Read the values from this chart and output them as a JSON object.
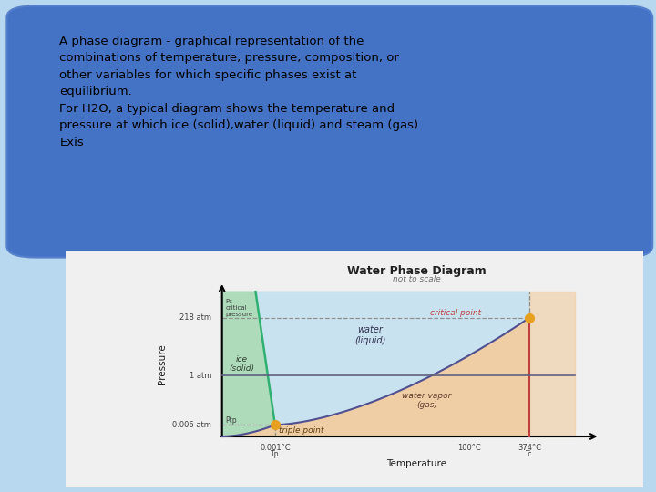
{
  "bg_color": "#b8d8f0",
  "box_color": "#4472c4",
  "box_text_color": "#000000",
  "box_text": "A phase diagram - graphical representation of the\ncombinations of temperature, pressure, composition, or\nother variables for which specific phases exist at\nequilibrium.\nFor H2O, a typical diagram shows the temperature and\npressure at which ice (solid),water (liquid) and steam (gas)\nExis",
  "diagram_bg": "#f8f8f8",
  "title": "Water Phase Diagram",
  "subtitle": "not to scale",
  "xlabel": "Temperature",
  "ylabel": "Pressure",
  "phase_ice_color": "#98d4a8",
  "phase_water_color": "#c0dff0",
  "phase_vapor_color": "#f0c898",
  "triple_point_color": "#e8a020",
  "critical_point_color": "#e8a020",
  "line_solid_liquid_color": "#30b070",
  "line_liquid_vapor_color": "#505090",
  "critical_line_color": "#c04040",
  "dashed_line_color": "#909090",
  "one_atm_line_color": "#606080"
}
